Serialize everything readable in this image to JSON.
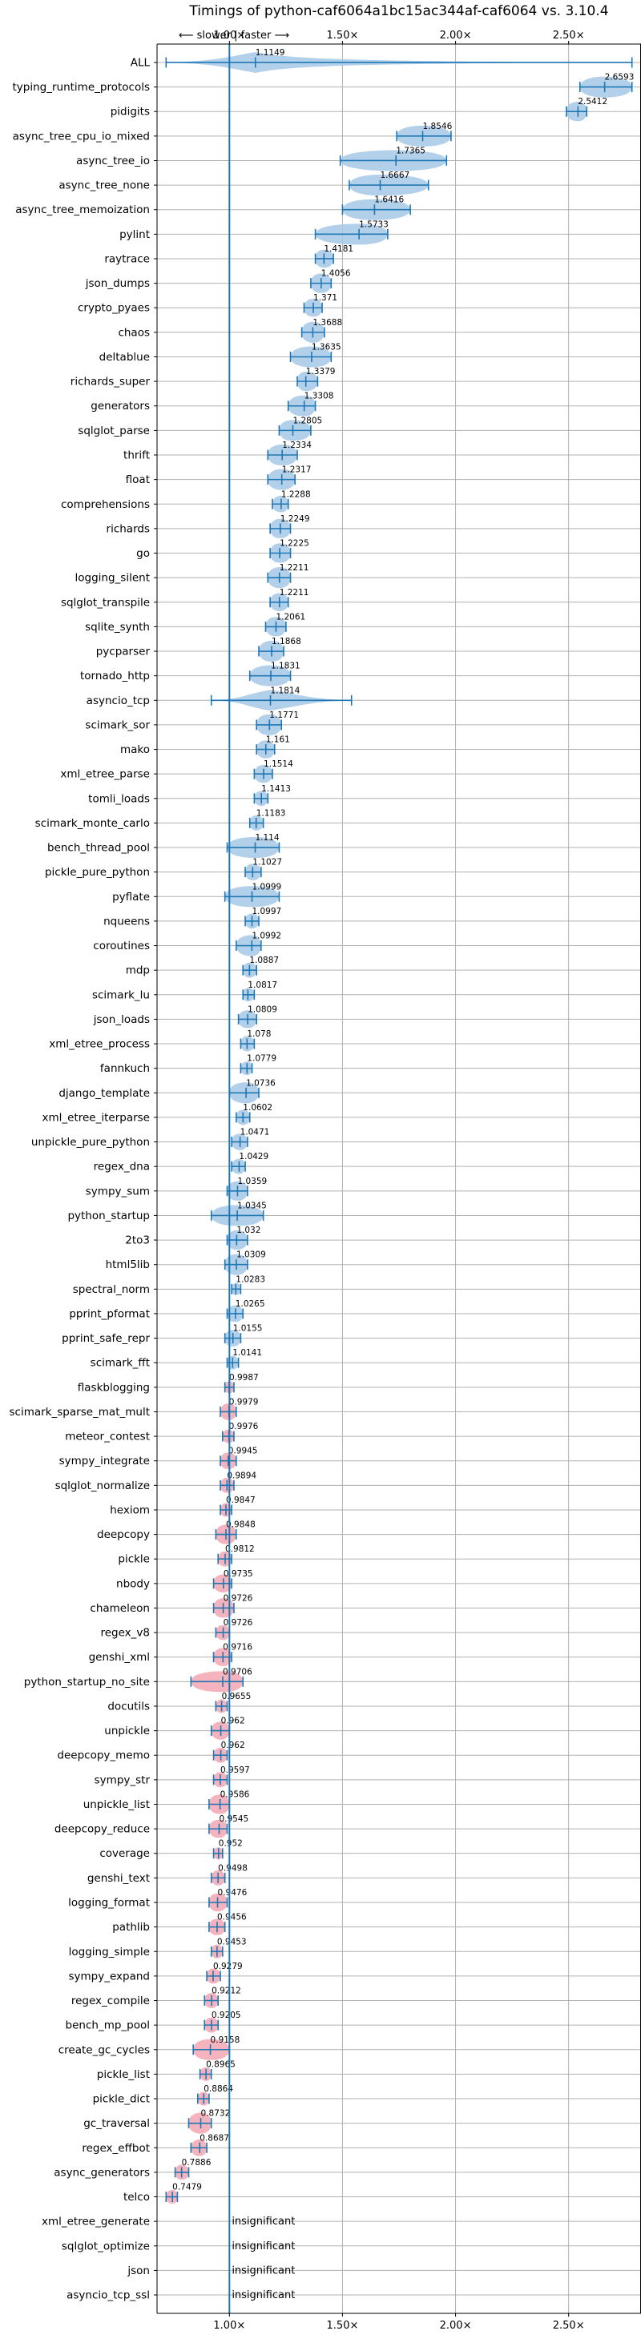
{
  "chart_data": {
    "type": "violin",
    "title": "Timings of python-caf6064a1bc15ac344af-caf6064 vs. 3.10.4",
    "direction_hint": "⟵ slower | faster ⟶",
    "xlim": [
      0.68,
      2.82
    ],
    "x_ticks": [
      1.0,
      1.5,
      2.0,
      2.5
    ],
    "x_tick_labels": [
      "1.00×",
      "1.50×",
      "2.00×",
      "2.50×"
    ],
    "grid": true,
    "insignificant_label": "insignificant",
    "benchmarks": [
      {
        "name": "ALL",
        "value": 1.1149,
        "range": [
          0.72,
          2.78
        ],
        "sig": "faster"
      },
      {
        "name": "typing_runtime_protocols",
        "value": 2.6593,
        "range": [
          2.55,
          2.78
        ],
        "sig": "faster"
      },
      {
        "name": "pidigits",
        "value": 2.5412,
        "range": [
          2.49,
          2.58
        ],
        "sig": "faster"
      },
      {
        "name": "async_tree_cpu_io_mixed",
        "value": 1.8546,
        "range": [
          1.74,
          1.98
        ],
        "sig": "faster"
      },
      {
        "name": "async_tree_io",
        "value": 1.7365,
        "range": [
          1.49,
          1.96
        ],
        "sig": "faster"
      },
      {
        "name": "async_tree_none",
        "value": 1.6667,
        "range": [
          1.53,
          1.88
        ],
        "sig": "faster"
      },
      {
        "name": "async_tree_memoization",
        "value": 1.6416,
        "range": [
          1.5,
          1.8
        ],
        "sig": "faster"
      },
      {
        "name": "pylint",
        "value": 1.5733,
        "range": [
          1.38,
          1.7
        ],
        "sig": "faster"
      },
      {
        "name": "raytrace",
        "value": 1.4181,
        "range": [
          1.38,
          1.46
        ],
        "sig": "faster"
      },
      {
        "name": "json_dumps",
        "value": 1.4056,
        "range": [
          1.36,
          1.45
        ],
        "sig": "faster"
      },
      {
        "name": "crypto_pyaes",
        "value": 1.371,
        "range": [
          1.33,
          1.41
        ],
        "sig": "faster"
      },
      {
        "name": "chaos",
        "value": 1.3688,
        "range": [
          1.32,
          1.42
        ],
        "sig": "faster"
      },
      {
        "name": "deltablue",
        "value": 1.3635,
        "range": [
          1.27,
          1.45
        ],
        "sig": "faster"
      },
      {
        "name": "richards_super",
        "value": 1.3379,
        "range": [
          1.3,
          1.39
        ],
        "sig": "faster"
      },
      {
        "name": "generators",
        "value": 1.3308,
        "range": [
          1.26,
          1.38
        ],
        "sig": "faster"
      },
      {
        "name": "sqlglot_parse",
        "value": 1.2805,
        "range": [
          1.22,
          1.36
        ],
        "sig": "faster"
      },
      {
        "name": "thrift",
        "value": 1.2334,
        "range": [
          1.17,
          1.3
        ],
        "sig": "faster"
      },
      {
        "name": "float",
        "value": 1.2317,
        "range": [
          1.17,
          1.29
        ],
        "sig": "faster"
      },
      {
        "name": "comprehensions",
        "value": 1.2288,
        "range": [
          1.19,
          1.26
        ],
        "sig": "faster"
      },
      {
        "name": "richards",
        "value": 1.2249,
        "range": [
          1.18,
          1.27
        ],
        "sig": "faster"
      },
      {
        "name": "go",
        "value": 1.2225,
        "range": [
          1.18,
          1.27
        ],
        "sig": "faster"
      },
      {
        "name": "logging_silent",
        "value": 1.2211,
        "range": [
          1.17,
          1.27
        ],
        "sig": "faster"
      },
      {
        "name": "sqlglot_transpile",
        "value": 1.2211,
        "range": [
          1.18,
          1.26
        ],
        "sig": "faster"
      },
      {
        "name": "sqlite_synth",
        "value": 1.2061,
        "range": [
          1.16,
          1.25
        ],
        "sig": "faster"
      },
      {
        "name": "pycparser",
        "value": 1.1868,
        "range": [
          1.13,
          1.24
        ],
        "sig": "faster"
      },
      {
        "name": "tornado_http",
        "value": 1.1831,
        "range": [
          1.09,
          1.27
        ],
        "sig": "faster"
      },
      {
        "name": "asyncio_tcp",
        "value": 1.1814,
        "range": [
          0.92,
          1.54
        ],
        "sig": "faster"
      },
      {
        "name": "scimark_sor",
        "value": 1.1771,
        "range": [
          1.12,
          1.23
        ],
        "sig": "faster"
      },
      {
        "name": "mako",
        "value": 1.161,
        "range": [
          1.12,
          1.2
        ],
        "sig": "faster"
      },
      {
        "name": "xml_etree_parse",
        "value": 1.1514,
        "range": [
          1.11,
          1.19
        ],
        "sig": "faster"
      },
      {
        "name": "tomli_loads",
        "value": 1.1413,
        "range": [
          1.11,
          1.17
        ],
        "sig": "faster"
      },
      {
        "name": "scimark_monte_carlo",
        "value": 1.1183,
        "range": [
          1.09,
          1.15
        ],
        "sig": "faster"
      },
      {
        "name": "bench_thread_pool",
        "value": 1.114,
        "range": [
          0.99,
          1.22
        ],
        "sig": "faster"
      },
      {
        "name": "pickle_pure_python",
        "value": 1.1027,
        "range": [
          1.07,
          1.14
        ],
        "sig": "faster"
      },
      {
        "name": "pyflate",
        "value": 1.0999,
        "range": [
          0.98,
          1.22
        ],
        "sig": "faster"
      },
      {
        "name": "nqueens",
        "value": 1.0997,
        "range": [
          1.07,
          1.13
        ],
        "sig": "faster"
      },
      {
        "name": "coroutines",
        "value": 1.0992,
        "range": [
          1.03,
          1.14
        ],
        "sig": "faster"
      },
      {
        "name": "mdp",
        "value": 1.0887,
        "range": [
          1.06,
          1.12
        ],
        "sig": "faster"
      },
      {
        "name": "scimark_lu",
        "value": 1.0817,
        "range": [
          1.06,
          1.11
        ],
        "sig": "faster"
      },
      {
        "name": "json_loads",
        "value": 1.0809,
        "range": [
          1.04,
          1.12
        ],
        "sig": "faster"
      },
      {
        "name": "xml_etree_process",
        "value": 1.078,
        "range": [
          1.05,
          1.11
        ],
        "sig": "faster"
      },
      {
        "name": "fannkuch",
        "value": 1.0779,
        "range": [
          1.05,
          1.1
        ],
        "sig": "faster"
      },
      {
        "name": "django_template",
        "value": 1.0736,
        "range": [
          1.0,
          1.13
        ],
        "sig": "faster"
      },
      {
        "name": "xml_etree_iterparse",
        "value": 1.0602,
        "range": [
          1.03,
          1.09
        ],
        "sig": "faster"
      },
      {
        "name": "unpickle_pure_python",
        "value": 1.0471,
        "range": [
          1.01,
          1.08
        ],
        "sig": "faster"
      },
      {
        "name": "regex_dna",
        "value": 1.0429,
        "range": [
          1.01,
          1.07
        ],
        "sig": "faster"
      },
      {
        "name": "sympy_sum",
        "value": 1.0359,
        "range": [
          0.99,
          1.08
        ],
        "sig": "faster"
      },
      {
        "name": "python_startup",
        "value": 1.0345,
        "range": [
          0.92,
          1.15
        ],
        "sig": "faster"
      },
      {
        "name": "2to3",
        "value": 1.032,
        "range": [
          0.99,
          1.08
        ],
        "sig": "faster"
      },
      {
        "name": "html5lib",
        "value": 1.0309,
        "range": [
          0.98,
          1.08
        ],
        "sig": "faster"
      },
      {
        "name": "spectral_norm",
        "value": 1.0283,
        "range": [
          1.01,
          1.05
        ],
        "sig": "faster"
      },
      {
        "name": "pprint_pformat",
        "value": 1.0265,
        "range": [
          0.99,
          1.06
        ],
        "sig": "faster"
      },
      {
        "name": "pprint_safe_repr",
        "value": 1.0155,
        "range": [
          0.98,
          1.05
        ],
        "sig": "faster"
      },
      {
        "name": "scimark_fft",
        "value": 1.0141,
        "range": [
          0.99,
          1.04
        ],
        "sig": "faster"
      },
      {
        "name": "flaskblogging",
        "value": 0.9987,
        "range": [
          0.98,
          1.02
        ],
        "sig": "slower"
      },
      {
        "name": "scimark_sparse_mat_mult",
        "value": 0.9979,
        "range": [
          0.96,
          1.03
        ],
        "sig": "slower"
      },
      {
        "name": "meteor_contest",
        "value": 0.9976,
        "range": [
          0.97,
          1.02
        ],
        "sig": "slower"
      },
      {
        "name": "sympy_integrate",
        "value": 0.9945,
        "range": [
          0.96,
          1.03
        ],
        "sig": "slower"
      },
      {
        "name": "sqlglot_normalize",
        "value": 0.9894,
        "range": [
          0.96,
          1.02
        ],
        "sig": "slower"
      },
      {
        "name": "hexiom",
        "value": 0.9847,
        "range": [
          0.96,
          1.01
        ],
        "sig": "slower"
      },
      {
        "name": "deepcopy",
        "value": 0.9848,
        "range": [
          0.94,
          1.03
        ],
        "sig": "slower"
      },
      {
        "name": "pickle",
        "value": 0.9812,
        "range": [
          0.95,
          1.01
        ],
        "sig": "slower"
      },
      {
        "name": "nbody",
        "value": 0.9735,
        "range": [
          0.93,
          1.01
        ],
        "sig": "slower"
      },
      {
        "name": "chameleon",
        "value": 0.9726,
        "range": [
          0.93,
          1.02
        ],
        "sig": "slower"
      },
      {
        "name": "regex_v8",
        "value": 0.9726,
        "range": [
          0.94,
          1.0
        ],
        "sig": "slower"
      },
      {
        "name": "genshi_xml",
        "value": 0.9716,
        "range": [
          0.93,
          1.01
        ],
        "sig": "slower"
      },
      {
        "name": "python_startup_no_site",
        "value": 0.9706,
        "range": [
          0.83,
          1.06
        ],
        "sig": "slower"
      },
      {
        "name": "docutils",
        "value": 0.9655,
        "range": [
          0.94,
          0.99
        ],
        "sig": "slower"
      },
      {
        "name": "unpickle",
        "value": 0.962,
        "range": [
          0.92,
          1.0
        ],
        "sig": "slower"
      },
      {
        "name": "deepcopy_memo",
        "value": 0.962,
        "range": [
          0.93,
          0.99
        ],
        "sig": "slower"
      },
      {
        "name": "sympy_str",
        "value": 0.9597,
        "range": [
          0.93,
          0.99
        ],
        "sig": "slower"
      },
      {
        "name": "unpickle_list",
        "value": 0.9586,
        "range": [
          0.91,
          1.0
        ],
        "sig": "slower"
      },
      {
        "name": "deepcopy_reduce",
        "value": 0.9545,
        "range": [
          0.91,
          0.99
        ],
        "sig": "slower"
      },
      {
        "name": "coverage",
        "value": 0.952,
        "range": [
          0.93,
          0.97
        ],
        "sig": "slower"
      },
      {
        "name": "genshi_text",
        "value": 0.9498,
        "range": [
          0.92,
          0.98
        ],
        "sig": "slower"
      },
      {
        "name": "logging_format",
        "value": 0.9476,
        "range": [
          0.91,
          0.99
        ],
        "sig": "slower"
      },
      {
        "name": "pathlib",
        "value": 0.9456,
        "range": [
          0.91,
          0.98
        ],
        "sig": "slower"
      },
      {
        "name": "logging_simple",
        "value": 0.9453,
        "range": [
          0.92,
          0.97
        ],
        "sig": "slower"
      },
      {
        "name": "sympy_expand",
        "value": 0.9279,
        "range": [
          0.9,
          0.96
        ],
        "sig": "slower"
      },
      {
        "name": "regex_compile",
        "value": 0.9212,
        "range": [
          0.89,
          0.95
        ],
        "sig": "slower"
      },
      {
        "name": "bench_mp_pool",
        "value": 0.9205,
        "range": [
          0.89,
          0.95
        ],
        "sig": "slower"
      },
      {
        "name": "create_gc_cycles",
        "value": 0.9158,
        "range": [
          0.84,
          1.0
        ],
        "sig": "slower"
      },
      {
        "name": "pickle_list",
        "value": 0.8965,
        "range": [
          0.87,
          0.92
        ],
        "sig": "slower"
      },
      {
        "name": "pickle_dict",
        "value": 0.8864,
        "range": [
          0.86,
          0.91
        ],
        "sig": "slower"
      },
      {
        "name": "gc_traversal",
        "value": 0.8732,
        "range": [
          0.82,
          0.92
        ],
        "sig": "slower"
      },
      {
        "name": "regex_effbot",
        "value": 0.8687,
        "range": [
          0.83,
          0.9
        ],
        "sig": "slower"
      },
      {
        "name": "async_generators",
        "value": 0.7886,
        "range": [
          0.76,
          0.82
        ],
        "sig": "slower"
      },
      {
        "name": "telco",
        "value": 0.7479,
        "range": [
          0.72,
          0.77
        ],
        "sig": "slower"
      },
      {
        "name": "xml_etree_generate",
        "value": null,
        "range": null,
        "sig": "insignificant"
      },
      {
        "name": "sqlglot_optimize",
        "value": null,
        "range": null,
        "sig": "insignificant"
      },
      {
        "name": "json",
        "value": null,
        "range": null,
        "sig": "insignificant"
      },
      {
        "name": "asyncio_tcp_ssl",
        "value": null,
        "range": null,
        "sig": "insignificant"
      }
    ]
  },
  "colors": {
    "faster": "#a6c8e6",
    "slower": "#f2a6b2",
    "line": "#1f77b4",
    "grid": "#b0b0b0",
    "axis": "#000000",
    "background": "#ffffff"
  }
}
